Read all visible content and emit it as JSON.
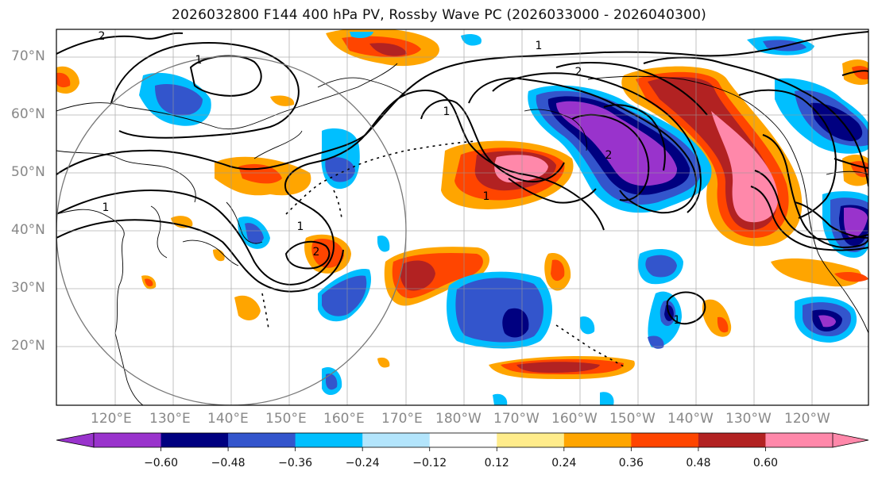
{
  "title": "2026032800 F144 400 hPa PV, Rossby Wave PC (2026033000 - 2026040300)",
  "lat_labels": [
    "70°N",
    "60°N",
    "50°N",
    "40°N",
    "30°N",
    "20°N"
  ],
  "lon_labels": [
    "120°E",
    "130°E",
    "140°E",
    "150°E",
    "160°E",
    "170°E",
    "180°W",
    "170°W",
    "160°W",
    "150°W",
    "140°W",
    "130°W",
    "120°W"
  ],
  "colorbar": {
    "colors": [
      "#9933cc",
      "#000080",
      "#3355cc",
      "#00bfff",
      "#b3e5fc",
      "#ffffff",
      "#ffec8b",
      "#ffa500",
      "#ff4500",
      "#b22222",
      "#ff88aa"
    ],
    "labels": [
      "−0.60",
      "−0.48",
      "−0.36",
      "−0.24",
      "−0.12",
      "0.12",
      "0.24",
      "0.36",
      "0.48",
      "0.60"
    ]
  },
  "contour_labels": [
    "2",
    "1",
    "1",
    "1",
    "1",
    "2",
    "2",
    "1",
    "1",
    "2",
    "1"
  ]
}
